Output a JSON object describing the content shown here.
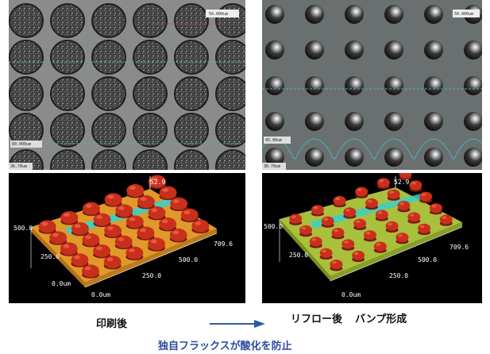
{
  "captions": {
    "left": "印刷後",
    "right_part1": "リフロー後",
    "right_part2": "バンプ形成",
    "footer": "独自フラックスが酸化を防止"
  },
  "colors": {
    "footer": "#2c4aa0",
    "arrow": "#2c5aa8",
    "plot_background": "#000000",
    "bump_red": "#c8301c",
    "base_yellow_green": "#a8c03c",
    "base_orange": "#e09a2a",
    "flux_cyan": "#3ad0c8"
  },
  "micrographs": {
    "left": {
      "scale_label": "50.000um",
      "measure_label": "80.000um",
      "corner_label": "36.70um"
    },
    "right": {
      "scale_label": "50.000um",
      "measure_label": "45.00um",
      "corner_label": "36.70um"
    }
  },
  "plots_3d": {
    "left": {
      "y_max": "500.0",
      "y_mid": "250.0",
      "y_origin": "0.0um",
      "x_max": "709.6",
      "x_mid": "500.0",
      "x_low": "250.0",
      "x_origin": "0.0um",
      "z_max": "52.9"
    },
    "right": {
      "y_max": "500.0",
      "y_mid": "250.0",
      "x_max": "709.6",
      "x_mid": "500.0",
      "x_low": "250.0",
      "x_origin": "0.0um",
      "z_max": "52.9"
    }
  }
}
